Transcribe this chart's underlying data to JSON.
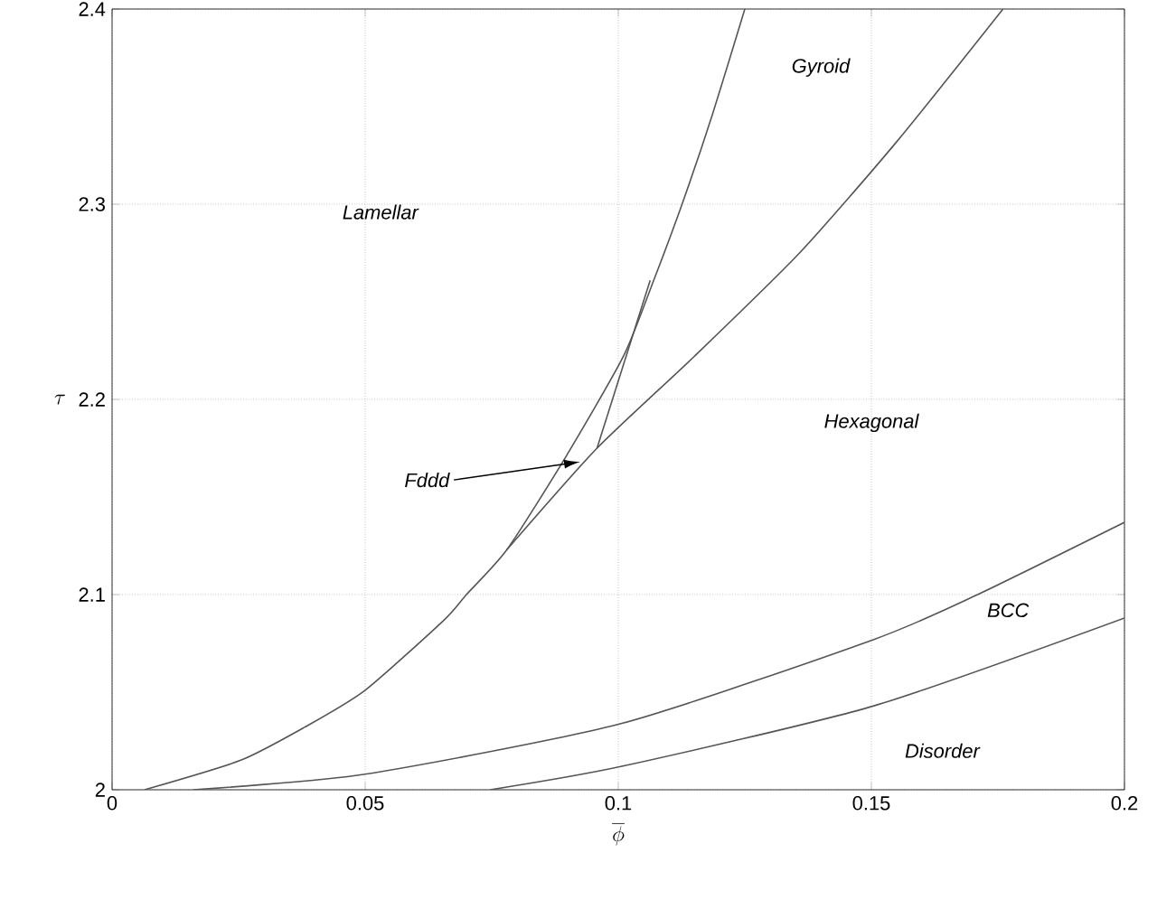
{
  "chart_data": {
    "type": "line",
    "xlabel": "\\overline{\\phi}",
    "ylabel": "\\tau",
    "xlim": [
      0,
      0.2
    ],
    "ylim": [
      2,
      2.4
    ],
    "xticks": [
      0,
      0.05,
      0.1,
      0.15,
      0.2
    ],
    "yticks": [
      2,
      2.1,
      2.2,
      2.3,
      2.4
    ],
    "grid": true,
    "marker": "none",
    "line_style": "solid",
    "series": [
      {
        "color": "#555555",
        "x": [
          0.0064,
          0.0253,
          0.038,
          0.05,
          0.0656,
          0.07,
          0.078,
          0.0895,
          0.101,
          0.107,
          0.1126,
          0.1186,
          0.125
        ],
        "values": [
          2.0,
          2.015,
          2.032,
          2.051,
          2.087,
          2.1,
          2.123,
          2.17,
          2.222,
          2.261,
          2.3,
          2.346,
          2.4
        ]
      },
      {
        "color": "#555555",
        "x": [
          0.078,
          0.0958,
          0.115,
          0.1358,
          0.155,
          0.176
        ],
        "values": [
          2.123,
          2.175,
          2.222,
          2.275,
          2.332,
          2.4
        ]
      },
      {
        "color": "#555555",
        "x": [
          0.0958,
          0.1063
        ],
        "values": [
          2.175,
          2.261
        ]
      },
      {
        "color": "#555555",
        "x": [
          0.016,
          0.05,
          0.1007,
          0.1505,
          0.171,
          0.2
        ],
        "values": [
          2.0,
          2.008,
          2.034,
          2.077,
          2.1,
          2.137
        ]
      },
      {
        "color": "#555555",
        "x": [
          0.0747,
          0.1007,
          0.1505,
          0.2
        ],
        "values": [
          2.0,
          2.012,
          2.043,
          2.088
        ]
      }
    ],
    "annotations": [
      "Lamellar",
      "Gyroid",
      "Hexagonal",
      "BCC",
      "Disorder",
      {
        "text": "Fddd",
        "x": 0.0925,
        "y": 2.168
      }
    ]
  }
}
